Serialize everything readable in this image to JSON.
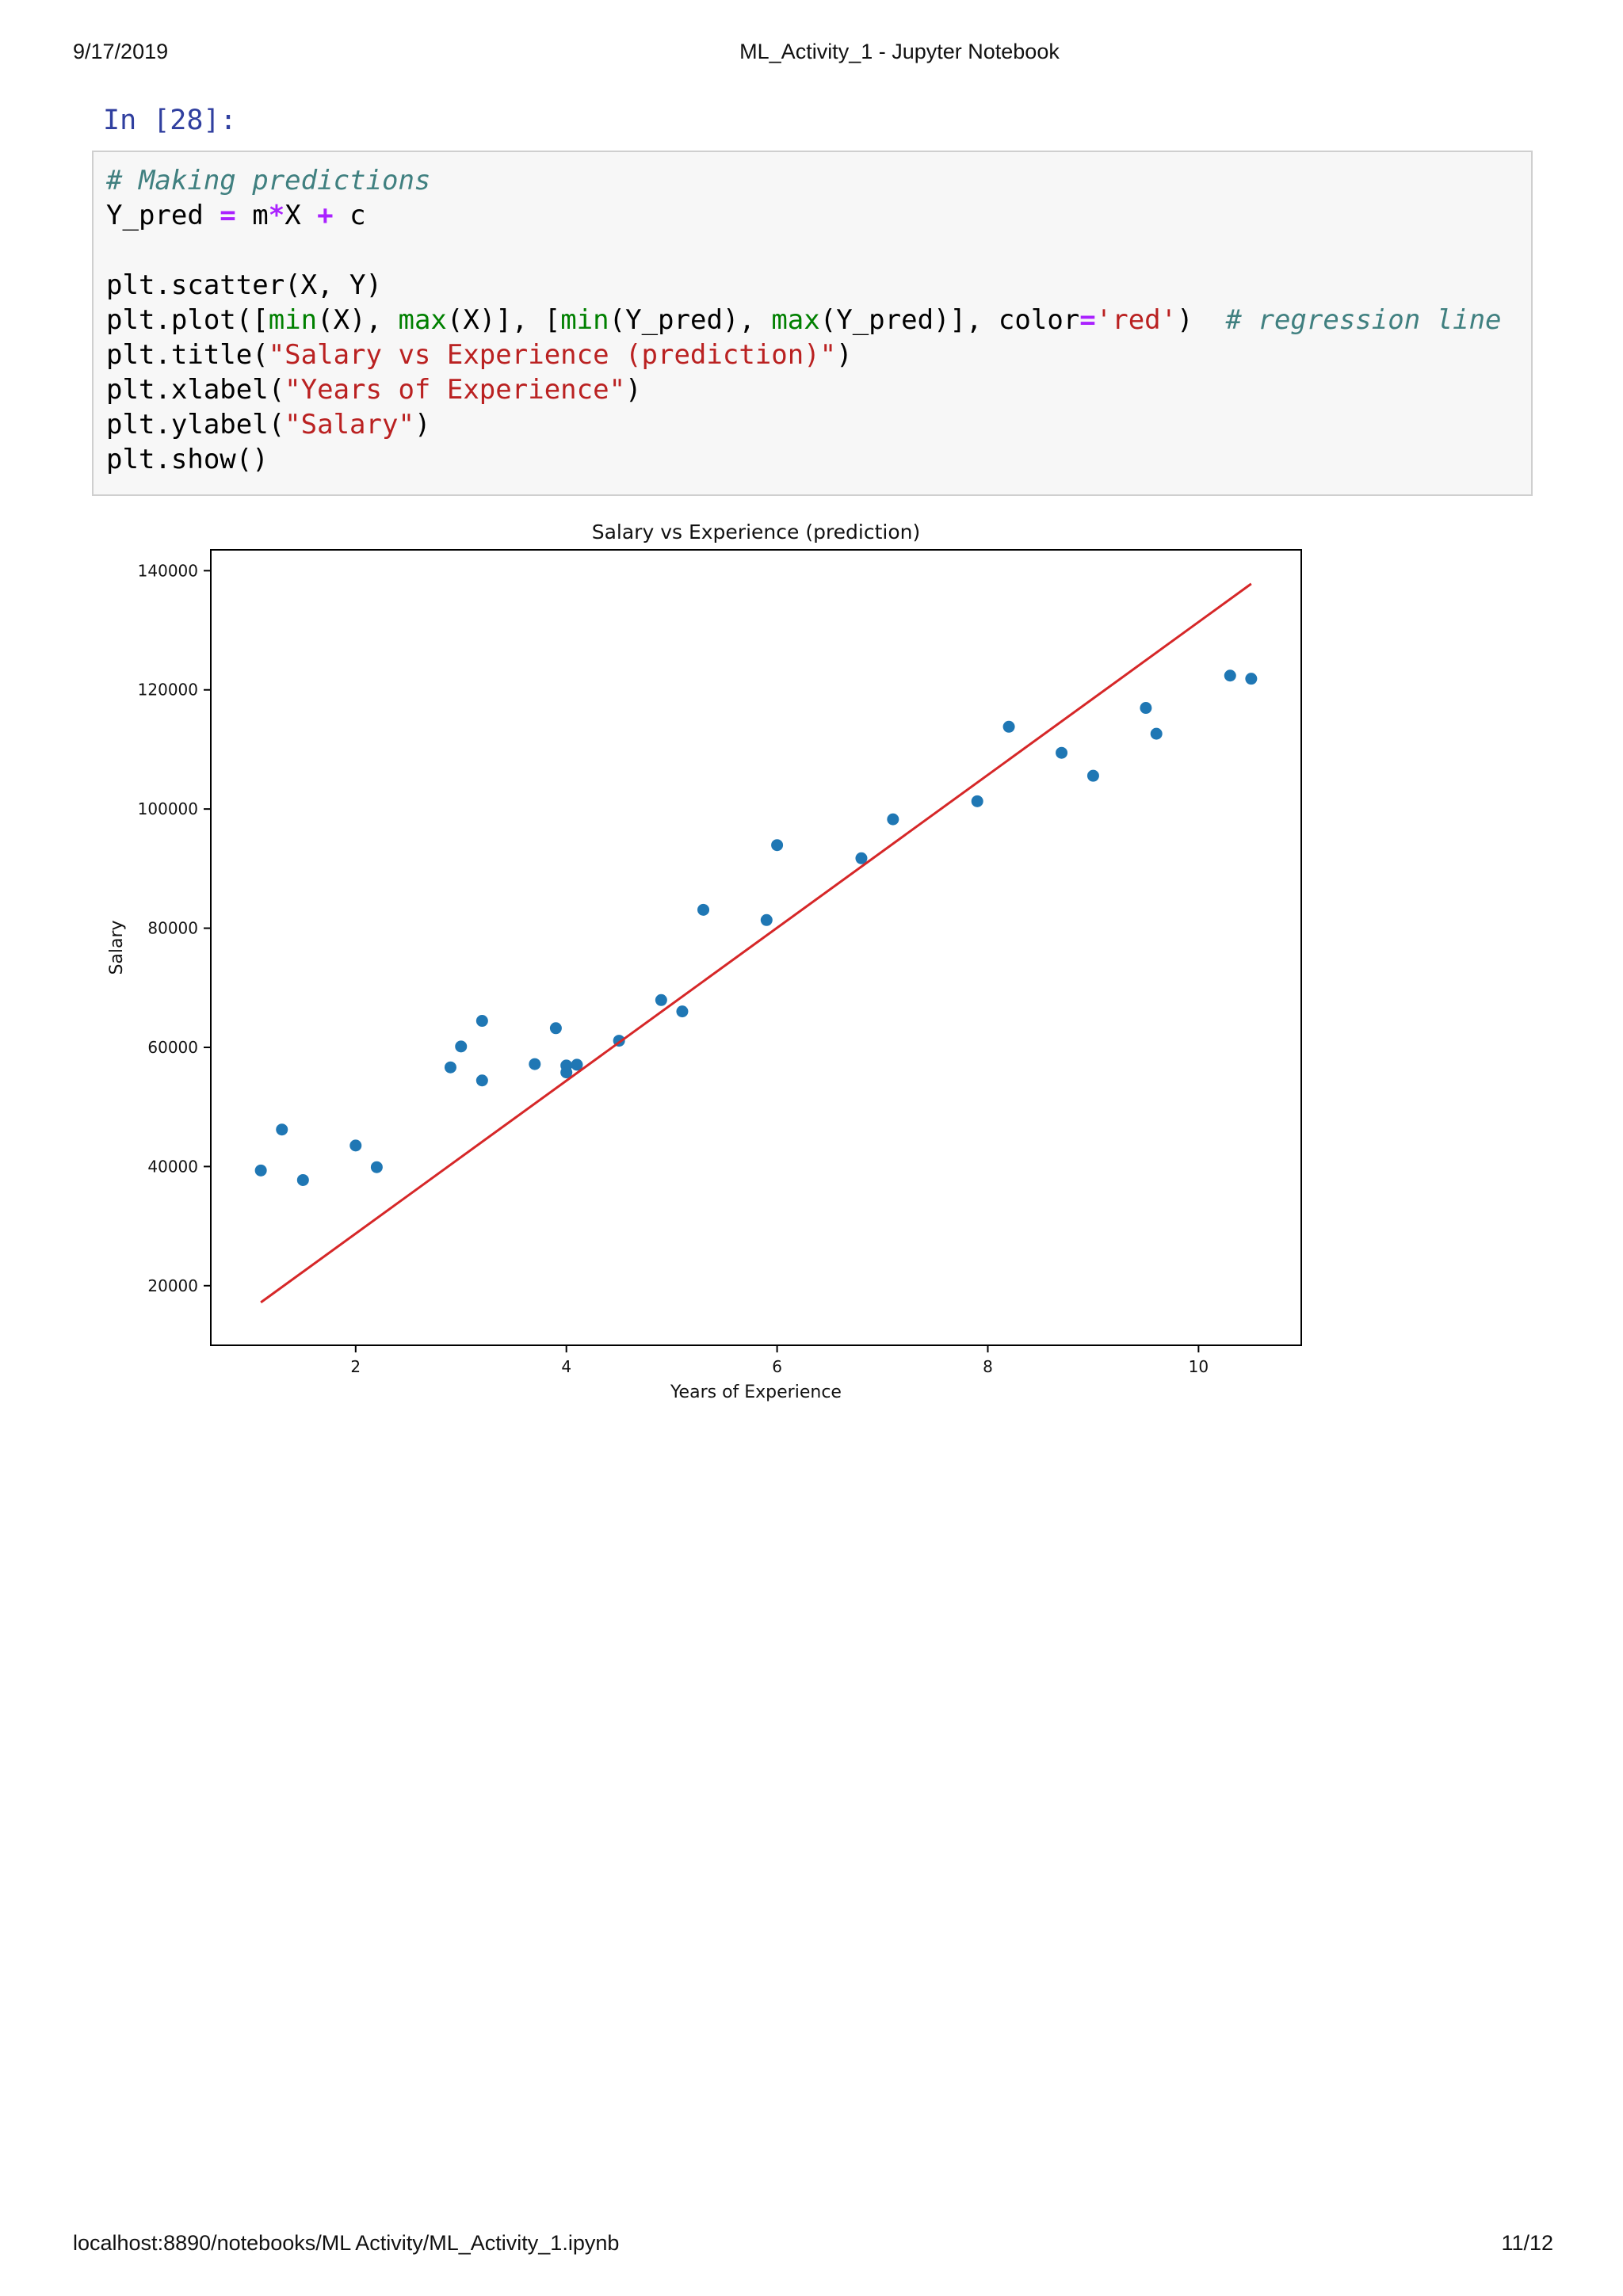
{
  "page_header": {
    "date": "9/17/2019",
    "title": "ML_Activity_1 - Jupyter Notebook"
  },
  "cell": {
    "prompt": "In [28]:",
    "code": [
      [
        {
          "t": "# Making predictions",
          "c": "com"
        }
      ],
      [
        {
          "t": "Y_pred "
        },
        {
          "t": "=",
          "c": "op"
        },
        {
          "t": " m"
        },
        {
          "t": "*",
          "c": "op"
        },
        {
          "t": "X "
        },
        {
          "t": "+",
          "c": "op"
        },
        {
          "t": " c"
        }
      ],
      [],
      [
        {
          "t": "plt.scatter(X, Y)"
        }
      ],
      [
        {
          "t": "plt.plot(["
        },
        {
          "t": "min",
          "c": "bi"
        },
        {
          "t": "(X), "
        },
        {
          "t": "max",
          "c": "bi"
        },
        {
          "t": "(X)], ["
        },
        {
          "t": "min",
          "c": "bi"
        },
        {
          "t": "(Y_pred), "
        },
        {
          "t": "max",
          "c": "bi"
        },
        {
          "t": "(Y_pred)], color"
        },
        {
          "t": "=",
          "c": "op"
        },
        {
          "t": "'red'",
          "c": "str"
        },
        {
          "t": ")  "
        },
        {
          "t": "# regression line",
          "c": "com"
        }
      ],
      [
        {
          "t": "plt.title("
        },
        {
          "t": "\"Salary vs Experience (prediction)\"",
          "c": "str"
        },
        {
          "t": ")"
        }
      ],
      [
        {
          "t": "plt.xlabel("
        },
        {
          "t": "\"Years of Experience\"",
          "c": "str"
        },
        {
          "t": ")"
        }
      ],
      [
        {
          "t": "plt.ylabel("
        },
        {
          "t": "\"Salary\"",
          "c": "str"
        },
        {
          "t": ")"
        }
      ],
      [
        {
          "t": "plt.show()"
        }
      ]
    ]
  },
  "colors": {
    "prompt": "#303f9f",
    "comment": "#408080",
    "operator": "#aa22ff",
    "builtin": "#008000",
    "string": "#ba2121",
    "scatter_point": "#1f77b4",
    "regression_line": "#d62728"
  },
  "chart_data": {
    "type": "scatter",
    "title": "Salary vs Experience (prediction)",
    "xlabel": "Years of Experience",
    "ylabel": "Salary",
    "xlim": [
      0.625,
      10.975
    ],
    "ylim": [
      10000,
      143500
    ],
    "xticks": [
      2,
      4,
      6,
      8,
      10
    ],
    "yticks": [
      20000,
      40000,
      60000,
      80000,
      100000,
      120000,
      140000
    ],
    "grid": false,
    "series": [
      {
        "kind": "scatter",
        "color": "#1f77b4",
        "points": [
          [
            1.1,
            39343
          ],
          [
            1.3,
            46205
          ],
          [
            1.5,
            37731
          ],
          [
            2.0,
            43525
          ],
          [
            2.2,
            39891
          ],
          [
            2.9,
            56642
          ],
          [
            3.0,
            60150
          ],
          [
            3.2,
            54445
          ],
          [
            3.2,
            64445
          ],
          [
            3.7,
            57189
          ],
          [
            3.9,
            63218
          ],
          [
            4.0,
            55794
          ],
          [
            4.0,
            56957
          ],
          [
            4.1,
            57081
          ],
          [
            4.5,
            61111
          ],
          [
            4.9,
            67938
          ],
          [
            5.1,
            66029
          ],
          [
            5.3,
            83088
          ],
          [
            5.9,
            81363
          ],
          [
            6.0,
            93940
          ],
          [
            6.8,
            91738
          ],
          [
            7.1,
            98273
          ],
          [
            7.9,
            101302
          ],
          [
            8.2,
            113812
          ],
          [
            8.7,
            109431
          ],
          [
            9.0,
            105582
          ],
          [
            9.5,
            116969
          ],
          [
            9.6,
            112635
          ],
          [
            10.3,
            122391
          ],
          [
            10.5,
            121872
          ]
        ]
      },
      {
        "kind": "line",
        "color": "#d62728",
        "points": [
          [
            1.1,
            17200
          ],
          [
            10.5,
            137800
          ]
        ]
      }
    ]
  },
  "page_footer": {
    "url": "localhost:8890/notebooks/ML Activity/ML_Activity_1.ipynb",
    "page": "11/12"
  }
}
